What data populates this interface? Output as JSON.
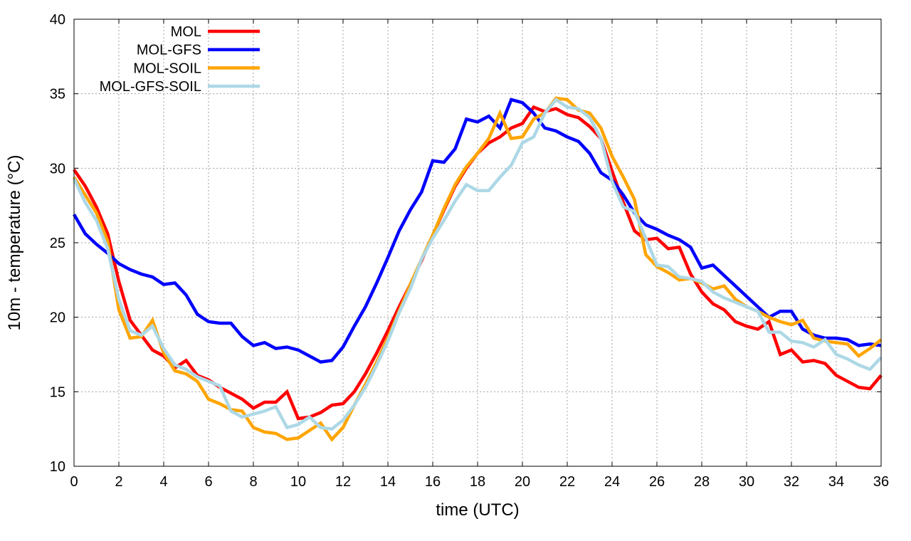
{
  "chart_data": {
    "type": "line",
    "title": "",
    "xlabel": "time (UTC)",
    "ylabel": "10m - temperature (°C)",
    "xlim": [
      0,
      36
    ],
    "ylim": [
      10,
      40
    ],
    "xticks": [
      0,
      2,
      4,
      6,
      8,
      10,
      12,
      14,
      16,
      18,
      20,
      22,
      24,
      26,
      28,
      30,
      32,
      34,
      36
    ],
    "yticks": [
      10,
      15,
      20,
      25,
      30,
      35,
      40
    ],
    "grid": true,
    "legend_position": "top-left",
    "x_step": 0.5,
    "series": [
      {
        "name": "MOL",
        "color": "#ff0000",
        "values": [
          29.9,
          28.8,
          27.4,
          25.6,
          22.4,
          19.8,
          18.8,
          17.8,
          17.4,
          16.6,
          17.1,
          16.1,
          15.8,
          15.3,
          14.9,
          14.5,
          13.9,
          14.3,
          14.3,
          15.0,
          13.2,
          13.3,
          13.6,
          14.1,
          14.2,
          15.0,
          16.2,
          17.6,
          19.1,
          20.7,
          22.2,
          23.8,
          25.5,
          27.2,
          28.8,
          30.0,
          31.0,
          31.7,
          32.1,
          32.7,
          33.0,
          34.1,
          33.8,
          34.0,
          33.6,
          33.4,
          32.8,
          32.0,
          29.8,
          27.7,
          25.8,
          25.2,
          25.3,
          24.6,
          24.7,
          22.9,
          21.7,
          20.9,
          20.5,
          19.7,
          19.4,
          19.2,
          19.7,
          17.5,
          17.8,
          17.0,
          17.1,
          16.9,
          16.1,
          15.7,
          15.3,
          15.2,
          16.1
        ]
      },
      {
        "name": "MOL-GFS",
        "color": "#0000ff",
        "values": [
          26.9,
          25.6,
          24.9,
          24.3,
          23.6,
          23.2,
          22.9,
          22.7,
          22.2,
          22.3,
          21.5,
          20.2,
          19.7,
          19.6,
          19.6,
          18.7,
          18.1,
          18.3,
          17.9,
          18.0,
          17.8,
          17.4,
          17.0,
          17.1,
          18.0,
          19.4,
          20.7,
          22.3,
          24.0,
          25.8,
          27.2,
          28.4,
          30.5,
          30.4,
          31.3,
          33.3,
          33.1,
          33.5,
          32.7,
          34.6,
          34.4,
          33.7,
          32.7,
          32.5,
          32.1,
          31.8,
          31.0,
          29.7,
          29.2,
          28.2,
          27.0,
          26.2,
          25.9,
          25.5,
          25.2,
          24.7,
          23.3,
          23.5,
          22.8,
          22.1,
          21.4,
          20.7,
          20.0,
          20.4,
          20.4,
          19.2,
          18.8,
          18.6,
          18.6,
          18.5,
          18.1,
          18.2,
          18.1
        ]
      },
      {
        "name": "MOL-SOIL",
        "color": "#ffa500",
        "values": [
          29.4,
          28.2,
          27.0,
          25.1,
          20.5,
          18.6,
          18.7,
          19.8,
          17.6,
          16.4,
          16.2,
          15.7,
          14.5,
          14.2,
          13.8,
          13.7,
          12.6,
          12.3,
          12.2,
          11.8,
          11.9,
          12.4,
          12.9,
          11.8,
          12.6,
          14.1,
          15.5,
          17.0,
          18.6,
          20.4,
          22.2,
          23.9,
          25.5,
          27.3,
          28.9,
          30.1,
          31.0,
          32.0,
          33.7,
          32.0,
          32.1,
          33.3,
          33.7,
          34.7,
          34.6,
          33.9,
          33.7,
          32.7,
          30.8,
          29.4,
          27.9,
          24.2,
          23.4,
          23.0,
          22.5,
          22.6,
          22.3,
          21.9,
          22.1,
          21.2,
          20.7,
          20.4,
          20.0,
          19.7,
          19.5,
          19.8,
          18.6,
          18.4,
          18.3,
          18.2,
          17.4,
          17.9,
          18.5
        ]
      },
      {
        "name": "MOL-GFS-SOIL",
        "color": "#add8e6",
        "values": [
          29.3,
          27.7,
          26.5,
          24.6,
          21.2,
          19.1,
          18.8,
          19.4,
          17.9,
          16.8,
          16.5,
          16.0,
          15.7,
          15.4,
          13.7,
          13.3,
          13.5,
          13.7,
          14.0,
          12.6,
          12.8,
          13.3,
          12.6,
          12.5,
          13.1,
          14.1,
          15.3,
          16.8,
          18.4,
          20.3,
          21.9,
          23.9,
          25.3,
          26.5,
          27.8,
          28.9,
          28.5,
          28.5,
          29.4,
          30.2,
          31.7,
          32.1,
          33.7,
          34.6,
          34.1,
          34.0,
          33.4,
          32.0,
          29.1,
          27.4,
          27.1,
          25.3,
          23.5,
          23.4,
          22.7,
          22.6,
          22.4,
          21.7,
          21.3,
          21.0,
          20.7,
          20.4,
          19.0,
          19.0,
          18.4,
          18.3,
          18.0,
          18.5,
          17.5,
          17.2,
          16.8,
          16.5,
          17.3
        ]
      }
    ]
  }
}
